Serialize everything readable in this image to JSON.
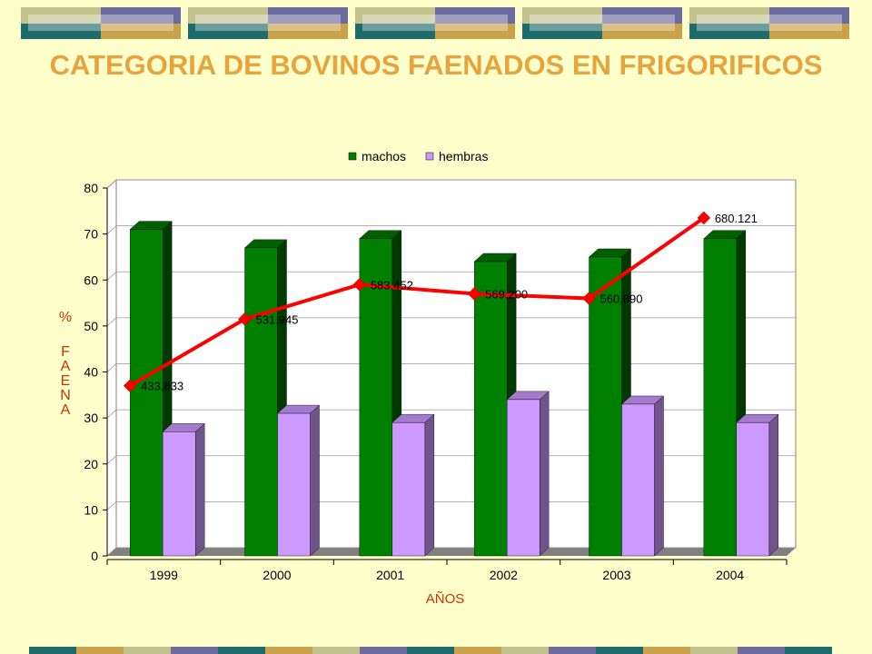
{
  "slide": {
    "title": "CATEGORIA DE BOVINOS FAENADOS EN FRIGORIFICOS"
  },
  "colors": {
    "background": "#ffffcc",
    "title": "#e8a33c",
    "machos": "#008000",
    "hembras": "#cc99ff",
    "line": "#ff0000",
    "axis_label": "#cc3300",
    "deco_teal": "#1e6b6b",
    "deco_purple": "#6b6b9e",
    "deco_olive": "#c2c28f",
    "deco_gold": "#c9a24a"
  },
  "chart_data": {
    "type": "bar",
    "categories": [
      "1999",
      "2000",
      "2001",
      "2002",
      "2003",
      "2004"
    ],
    "series": [
      {
        "name": "machos",
        "values": [
          71,
          67,
          69,
          64,
          65,
          69
        ]
      },
      {
        "name": "hembras",
        "values": [
          27,
          31,
          29,
          34,
          33,
          29
        ]
      }
    ],
    "line_series": {
      "values": [
        37,
        51.5,
        59,
        57,
        56,
        73.5
      ],
      "labels": [
        "433.833",
        "531.945",
        "583.452",
        "569.200",
        "560.890",
        "680.121"
      ]
    },
    "ylim": [
      0,
      80
    ],
    "yticks": [
      "0",
      "10",
      "20",
      "30",
      "40",
      "50",
      "60",
      "70",
      "80"
    ],
    "xlabel": "AÑOS",
    "ylabel": "% FAENA",
    "legend_position": "top-center",
    "grid": true
  }
}
